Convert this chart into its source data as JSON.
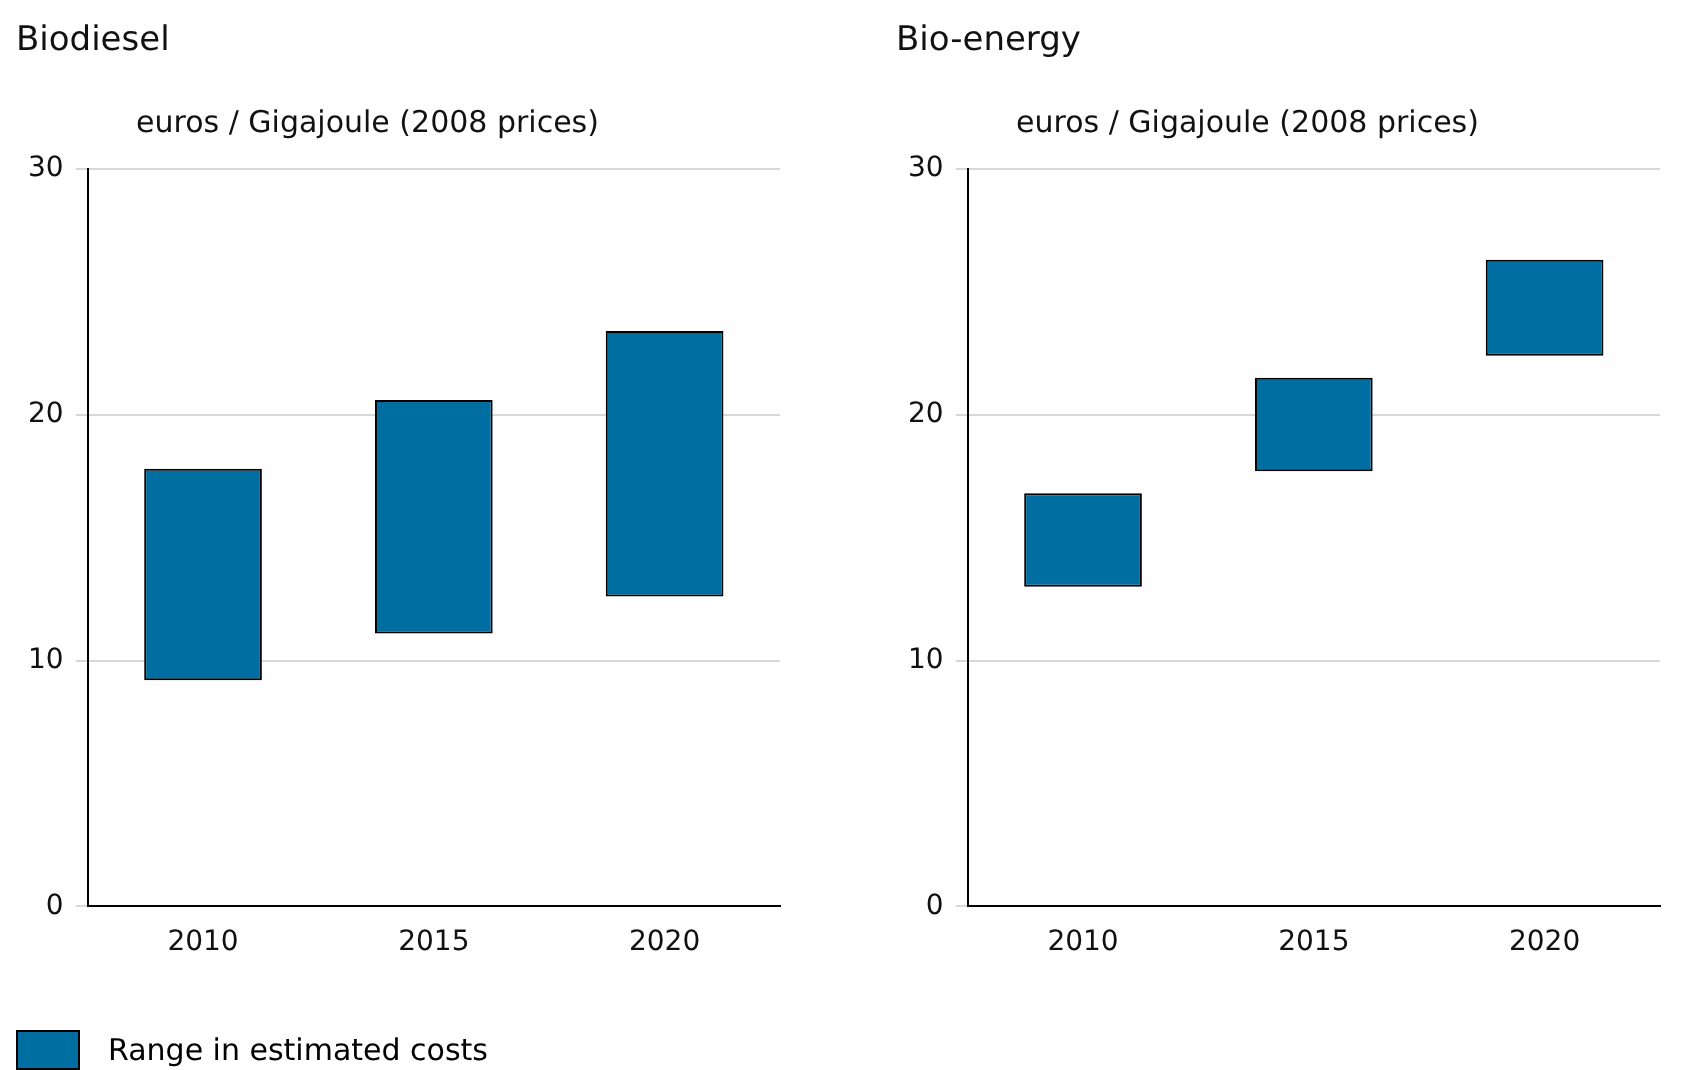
{
  "chart_data": [
    {
      "type": "bar",
      "title": "Biodiesel",
      "ylabel": "euros / Gigajoule (2008 prices)",
      "categories": [
        "2010",
        "2015",
        "2020"
      ],
      "series": [
        {
          "name": "Range in estimated costs",
          "color": "#006ea0",
          "base": [
            9.2,
            11.1,
            12.6
          ],
          "values": [
            8.6,
            9.5,
            10.8
          ]
        }
      ],
      "ylim": [
        0,
        30
      ],
      "yticks": [
        0,
        10,
        20,
        30
      ],
      "grid": "y",
      "legend": "bottom"
    },
    {
      "type": "bar",
      "title": "Bio-energy",
      "ylabel": "euros / Gigajoule (2008 prices)",
      "categories": [
        "2010",
        "2015",
        "2020"
      ],
      "series": [
        {
          "color": "#006ea0",
          "base": [
            13.0,
            17.7,
            22.4
          ],
          "values": [
            3.8,
            3.8,
            3.9
          ]
        }
      ],
      "ylim": [
        0,
        30
      ],
      "yticks": [
        0,
        10,
        20,
        30
      ],
      "grid": "y"
    }
  ]
}
